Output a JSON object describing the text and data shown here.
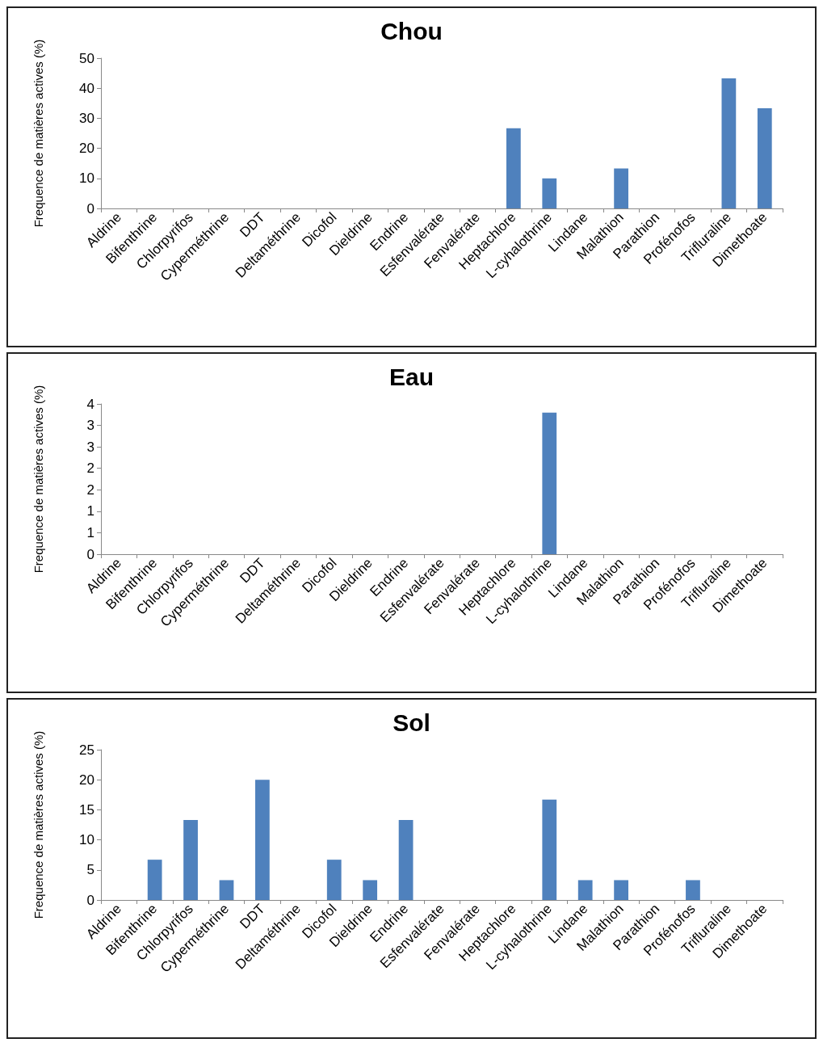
{
  "chart_data": [
    {
      "type": "bar",
      "title": "Chou",
      "ylabel": "Frequence de matières actives (%)",
      "categories": [
        "Aldrine",
        "Bifenthrine",
        "Chlorpyrifos",
        "Cyperméthrine",
        "DDT",
        "Deltaméthrine",
        "Dicofol",
        "Dieldrine",
        "Endrine",
        "Esfenvalérate",
        "Fenvalérate",
        "Heptachlore",
        "L-cyhalothrine",
        "Lindane",
        "Malathion",
        "Parathion",
        "Profénofos",
        "Trifluraline",
        "Dimethoate"
      ],
      "values": [
        0,
        0,
        0,
        0,
        0,
        0,
        0,
        0,
        0,
        0,
        0,
        26.7,
        10,
        0,
        13.3,
        0,
        0,
        43.3,
        33.3
      ],
      "color": "#4f81bd",
      "ylim": [
        0,
        50
      ],
      "yticks": [
        0,
        10,
        20,
        30,
        40,
        50
      ]
    },
    {
      "type": "bar",
      "title": "Eau",
      "ylabel": "Frequence de matières actives (%)",
      "categories": [
        "Aldrine",
        "Bifenthrine",
        "Chlorpyrifos",
        "Cyperméthrine",
        "DDT",
        "Deltaméthrine",
        "Dicofol",
        "Dieldrine",
        "Endrine",
        "Esfenvalérate",
        "Fenvalérate",
        "Heptachlore",
        "L-cyhalothrine",
        "Lindane",
        "Malathion",
        "Parathion",
        "Profénofos",
        "Trifluraline",
        "Dimethoate"
      ],
      "values": [
        0,
        0,
        0,
        0,
        0,
        0,
        0,
        0,
        0,
        0,
        0,
        0,
        3.3,
        0,
        0,
        0,
        0,
        0,
        0
      ],
      "color": "#4f81bd",
      "ylim": [
        0,
        3.5
      ],
      "yticks": [
        0,
        {
          "value": 0.5,
          "label": "1"
        },
        1,
        {
          "value": 1.5,
          "label": "2"
        },
        2,
        {
          "value": 2.5,
          "label": "3"
        },
        3,
        {
          "value": 3.5,
          "label": "4"
        }
      ]
    },
    {
      "type": "bar",
      "title": "Sol",
      "ylabel": "Frequence de matières actives (%)",
      "categories": [
        "Aldrine",
        "Bifenthrine",
        "Chlorpyrifos",
        "Cyperméthrine",
        "DDT",
        "Deltaméthrine",
        "Dicofol",
        "Dieldrine",
        "Endrine",
        "Esfenvalérate",
        "Fenvalérate",
        "Heptachlore",
        "L-cyhalothrine",
        "Lindane",
        "Malathion",
        "Parathion",
        "Profénofos",
        "Trifluraline",
        "Dimethoate"
      ],
      "values": [
        0,
        6.7,
        13.3,
        3.3,
        20,
        0,
        6.7,
        3.3,
        13.3,
        0,
        0,
        0,
        16.7,
        3.3,
        3.3,
        0,
        3.3,
        0,
        0
      ],
      "color": "#4f81bd",
      "ylim": [
        0,
        25
      ],
      "yticks": [
        0,
        5,
        10,
        15,
        20,
        25
      ]
    }
  ]
}
